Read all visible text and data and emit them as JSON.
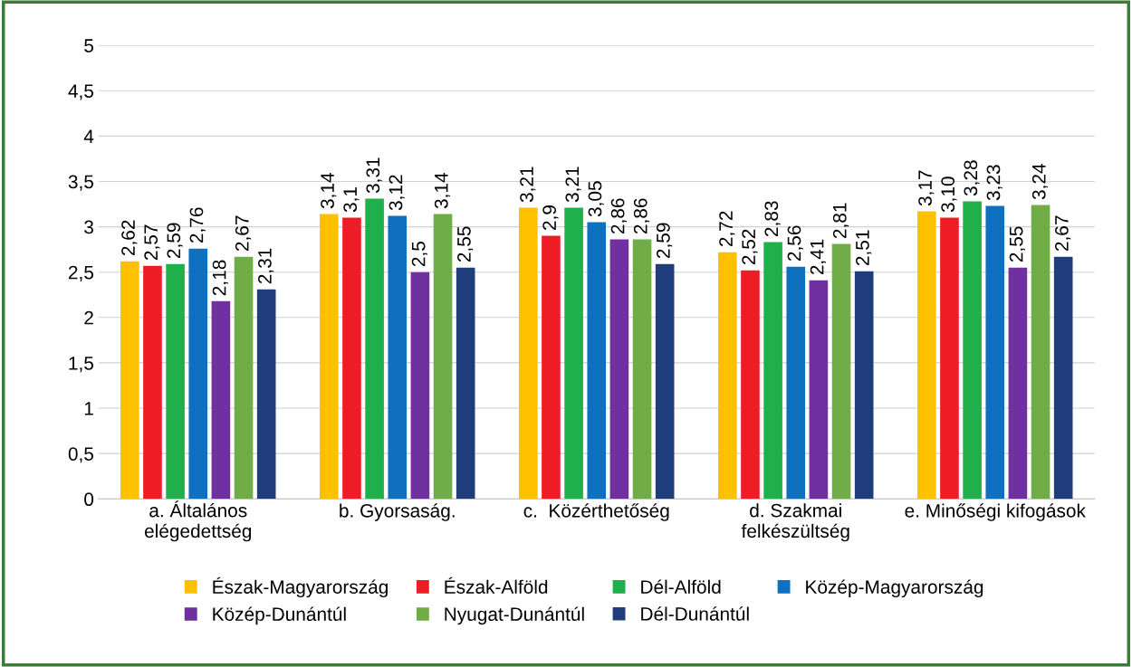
{
  "chart_data": {
    "type": "bar",
    "categories": [
      "a. Általános\nelégedettség",
      "b. Gyorsaság.",
      "c.  Közérthetőség",
      "d. Szakmai\nfelkészültség",
      "e. Minőségi kifogások"
    ],
    "series": [
      {
        "name": "Észak-Magyarország",
        "color": "#ffc000",
        "values": [
          2.62,
          3.14,
          3.21,
          2.72,
          3.17
        ],
        "value_labels": [
          "2,62",
          "3,14",
          "3,21",
          "2,72",
          "3,17"
        ]
      },
      {
        "name": "Észak-Alföld",
        "color": "#ee1c25",
        "values": [
          2.57,
          3.1,
          2.9,
          2.52,
          3.1
        ],
        "value_labels": [
          "2,57",
          "3,1",
          "2,9",
          "2,52",
          "3,10"
        ]
      },
      {
        "name": "Dél-Alföld",
        "color": "#1fb04b",
        "values": [
          2.59,
          3.31,
          3.21,
          2.83,
          3.28
        ],
        "value_labels": [
          "2,59",
          "3,31",
          "3,21",
          "2,83",
          "3,28"
        ]
      },
      {
        "name": "Közép-Magyarország",
        "color": "#0f70c0",
        "values": [
          2.76,
          3.12,
          3.05,
          2.56,
          3.23
        ],
        "value_labels": [
          "2,76",
          "3,12",
          "3,05",
          "2,56",
          "3,23"
        ]
      },
      {
        "name": "Közép-Dunántúl",
        "color": "#7030a0",
        "values": [
          2.18,
          2.5,
          2.86,
          2.41,
          2.55
        ],
        "value_labels": [
          "2,18",
          "2,5",
          "2,86",
          "2,41",
          "2,55"
        ]
      },
      {
        "name": "Nyugat-Dunántúl",
        "color": "#70ad47",
        "values": [
          2.67,
          3.14,
          2.86,
          2.81,
          3.24
        ],
        "value_labels": [
          "2,67",
          "3,14",
          "2,86",
          "2,81",
          "3,24"
        ]
      },
      {
        "name": "Dél-Dunántúl",
        "color": "#1f3d7a",
        "values": [
          2.31,
          2.55,
          2.59,
          2.51,
          2.67
        ],
        "value_labels": [
          "2,31",
          "2,55",
          "2,59",
          "2,51",
          "2,67"
        ]
      }
    ],
    "ylim": [
      0,
      5
    ],
    "yticks": [
      0,
      {
        "value": 0.5,
        "label": "0,5"
      },
      1,
      {
        "value": 1.5,
        "label": "1,5"
      },
      2,
      {
        "value": 2.5,
        "label": "2,5"
      },
      3,
      {
        "value": 3.5,
        "label": "3,5"
      },
      4,
      {
        "value": 4.5,
        "label": "4,5"
      },
      5
    ],
    "grid": "y",
    "legend": "bottom"
  }
}
